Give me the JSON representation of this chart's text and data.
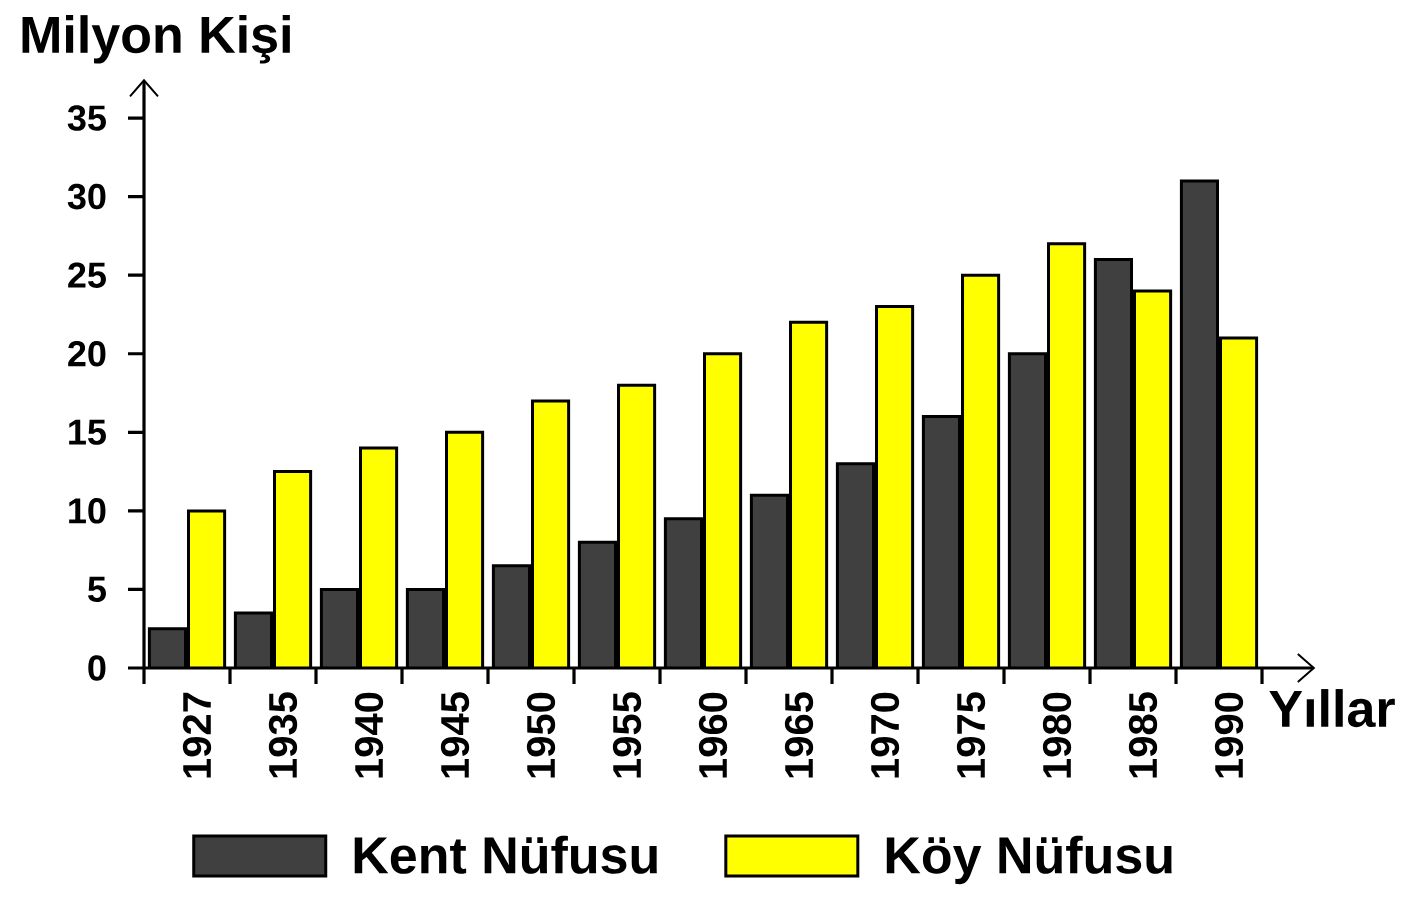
{
  "chart_data": {
    "type": "bar",
    "ylabel": "Milyon Kişi",
    "xlabel": "Yıllar",
    "categories": [
      "1927",
      "1935",
      "1940",
      "1945",
      "1950",
      "1955",
      "1960",
      "1965",
      "1970",
      "1975",
      "1980",
      "1985",
      "1990"
    ],
    "series": [
      {
        "name": "Kent Nüfusu",
        "color": "#404040",
        "values": [
          2.5,
          3.5,
          5,
          5,
          6.5,
          8,
          9.5,
          11,
          13,
          16,
          20,
          26,
          31
        ]
      },
      {
        "name": "Köy Nüfusu",
        "color": "#ffff00",
        "values": [
          10,
          12.5,
          14,
          15,
          17,
          18,
          20,
          22,
          23,
          25,
          27,
          24,
          21
        ]
      }
    ],
    "ylim": [
      0,
      37.5
    ],
    "yticks": [
      0,
      5,
      10,
      15,
      20,
      25,
      30,
      35
    ],
    "legend": "bottom"
  }
}
